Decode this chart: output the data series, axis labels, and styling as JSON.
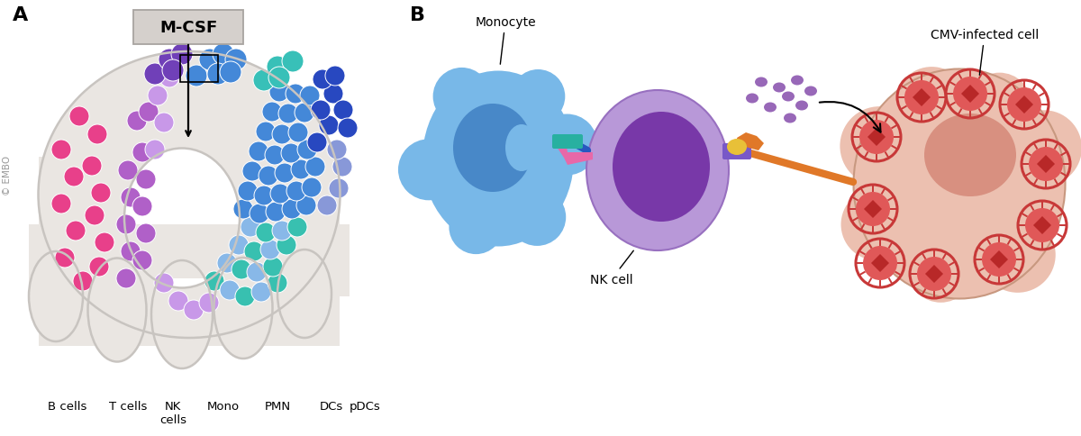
{
  "bg_color": "#ffffff",
  "panel_a_label": "A",
  "panel_b_label": "B",
  "mcsf_label": "M-CSF",
  "embo_label": "© EMBO",
  "cell_labels": [
    "B cells",
    "T cells",
    "NK\ncells",
    "Mono",
    "PMN",
    "DCs",
    "pDCs"
  ],
  "nk_cell_label": "NK cell",
  "monocyte_label": "Monocyte",
  "cmv_label": "CMV-infected cell",
  "body_color": "#eae6e2",
  "body_outline": "#c8c4c0",
  "b_cell_color": "#e8408a",
  "t_cell_color": "#b060c8",
  "nk_cell_color": "#7040b8",
  "mono_color": "#4488d8",
  "pmn_color": "#38c0b8",
  "dc_color": "#2848c0",
  "pdc_color": "#8898d8",
  "light_purple": "#c898e8",
  "light_blue": "#88b8e8",
  "teal": "#38c0b0",
  "nk_body_outer": "#b898d8",
  "nk_body_inner": "#7838a8",
  "monocyte_outer": "#78b8e8",
  "monocyte_inner": "#4888c8",
  "cmv_cell_outer": "#ecc0b0",
  "cmv_cell_inner": "#d89080",
  "cmv_virus_outer": "#c83838",
  "purple_dots": "#9868b8",
  "pink_receptor": "#e868a8",
  "teal_receptor": "#28b0a0",
  "blue_receptor": "#2858c0",
  "purple_receptor": "#7858c8",
  "orange_receptor": "#e07828",
  "yellow_receptor": "#e8c038"
}
